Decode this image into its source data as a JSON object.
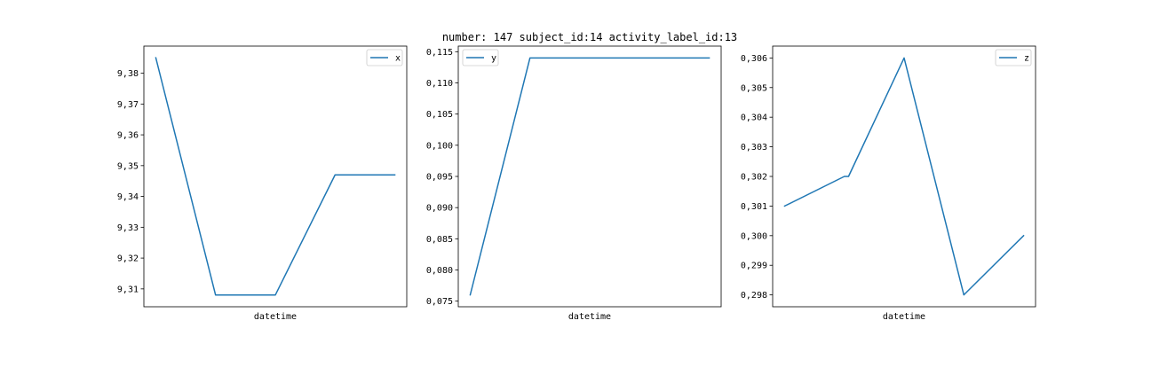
{
  "figure_title": "number: 147 subject_id:14 activity_label_id:13",
  "colors": {
    "series": "#1f77b4",
    "axes": "#000000",
    "legend_border": "#cccccc"
  },
  "chart_data": [
    {
      "type": "line",
      "title": "",
      "xlabel": "datetime",
      "ylabel": "",
      "legend": [
        "x"
      ],
      "legend_position": "upper right",
      "grid": false,
      "x_ticks": "none",
      "ylim": [
        9.3042,
        9.3888
      ],
      "yticks": [
        9.31,
        9.32,
        9.33,
        9.34,
        9.35,
        9.36,
        9.37,
        9.38
      ],
      "ytick_labels": [
        "9,31",
        "9,32",
        "9,33",
        "9,34",
        "9,35",
        "9,36",
        "9,37",
        "9,38"
      ],
      "series": [
        {
          "name": "x",
          "values": [
            9.385,
            9.308,
            9.308,
            9.347,
            9.347
          ]
        }
      ]
    },
    {
      "type": "line",
      "title": "",
      "xlabel": "datetime",
      "ylabel": "",
      "legend": [
        "y"
      ],
      "legend_position": "upper left",
      "grid": false,
      "x_ticks": "none",
      "ylim": [
        0.0741,
        0.1159
      ],
      "yticks": [
        0.075,
        0.08,
        0.085,
        0.09,
        0.095,
        0.1,
        0.105,
        0.11,
        0.115
      ],
      "ytick_labels": [
        "0,075",
        "0,080",
        "0,085",
        "0,090",
        "0,095",
        "0,100",
        "0,105",
        "0,110",
        "0,115"
      ],
      "series": [
        {
          "name": "y",
          "values": [
            0.076,
            0.114,
            0.114,
            0.114,
            0.114
          ]
        }
      ]
    },
    {
      "type": "line",
      "title": "",
      "xlabel": "datetime",
      "ylabel": "",
      "legend": [
        "z"
      ],
      "legend_position": "upper right",
      "grid": false,
      "x_ticks": "none",
      "ylim": [
        0.2976,
        0.3064
      ],
      "yticks": [
        0.298,
        0.299,
        0.3,
        0.301,
        0.302,
        0.303,
        0.304,
        0.305,
        0.306
      ],
      "ytick_labels": [
        "0,298",
        "0,299",
        "0,300",
        "0,301",
        "0,302",
        "0,303",
        "0,304",
        "0,305",
        "0,306"
      ],
      "series": [
        {
          "name": "z",
          "values": [
            0.301,
            0.302,
            0.302,
            0.306,
            0.298,
            0.3
          ]
        }
      ],
      "series_x": [
        0,
        1,
        1.07,
        2,
        3,
        4
      ]
    }
  ]
}
